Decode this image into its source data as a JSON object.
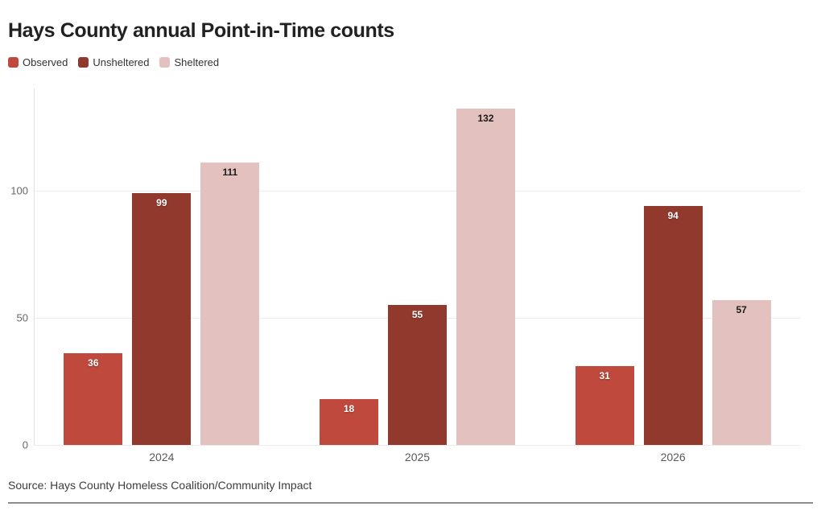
{
  "chart_data": {
    "type": "bar",
    "title": "Hays County annual Point-in-Time counts",
    "categories": [
      "2024",
      "2025",
      "2026"
    ],
    "series": [
      {
        "name": "Observed",
        "color": "#c0493d",
        "label_color": "#ffffff",
        "values": [
          36,
          18,
          31
        ]
      },
      {
        "name": "Unsheltered",
        "color": "#92392d",
        "label_color": "#ffffff",
        "values": [
          99,
          55,
          94
        ]
      },
      {
        "name": "Sheltered",
        "color": "#e3c1bf",
        "label_color": "#1a1a1a",
        "values": [
          111,
          132,
          57
        ]
      }
    ],
    "y_ticks": [
      0,
      50,
      100
    ],
    "ylim": [
      0,
      140
    ],
    "grid": true,
    "legend_position": "top-left",
    "xlabel": "",
    "ylabel": ""
  },
  "footer": {
    "source": "Source: Hays County Homeless Coalition/Community Impact"
  }
}
